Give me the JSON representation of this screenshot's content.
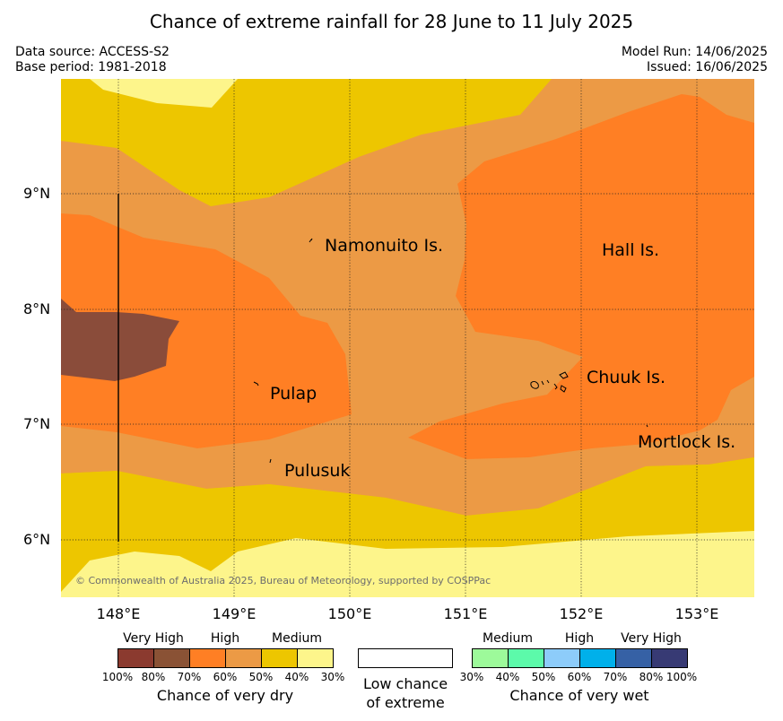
{
  "title": "Chance of extreme rainfall for 28 June to 11 July 2025",
  "data_source": "Data source: ACCESS-S2",
  "base_period": "Base period: 1981-2018",
  "model_run": "Model Run: 14/06/2025",
  "issued": "Issued: 16/06/2025",
  "copyright": "© Commonwealth of Australia 2025, Bureau of Meteorology, supported by COSPPac",
  "axes": {
    "lat_labels": [
      "9°N",
      "8°N",
      "7°N",
      "6°N"
    ],
    "lon_labels": [
      "148°E",
      "149°E",
      "150°E",
      "151°E",
      "152°E",
      "153°E"
    ]
  },
  "places": {
    "namonuito": "Namonuito Is.",
    "hall": "Hall Is.",
    "pulap": "Pulap",
    "chuuk": "Chuuk Is.",
    "mortlock": "Mortlock Is.",
    "pulusuk": "Pulusuk"
  },
  "legend": {
    "dry": {
      "levels": [
        "Very High",
        "High",
        "Medium"
      ],
      "ticks": [
        "100%",
        "80%",
        "70%",
        "60%",
        "50%",
        "40%",
        "30%"
      ],
      "caption": "Chance of very dry",
      "colors": [
        "#8b3a2f",
        "#8a5235",
        "#ff7f24",
        "#ec9a45",
        "#edc600",
        "#fdf58b"
      ]
    },
    "low": {
      "caption_line1": "Low chance",
      "caption_line2": "of extreme"
    },
    "wet": {
      "levels": [
        "Medium",
        "High",
        "Very High"
      ],
      "ticks": [
        "30%",
        "40%",
        "50%",
        "60%",
        "70%",
        "80%",
        "100%"
      ],
      "caption": "Chance of very wet",
      "colors": [
        "#9dfa9a",
        "#5cfaaa",
        "#8dccfa",
        "#00b0ea",
        "#3661a5",
        "#373a74"
      ]
    }
  }
}
